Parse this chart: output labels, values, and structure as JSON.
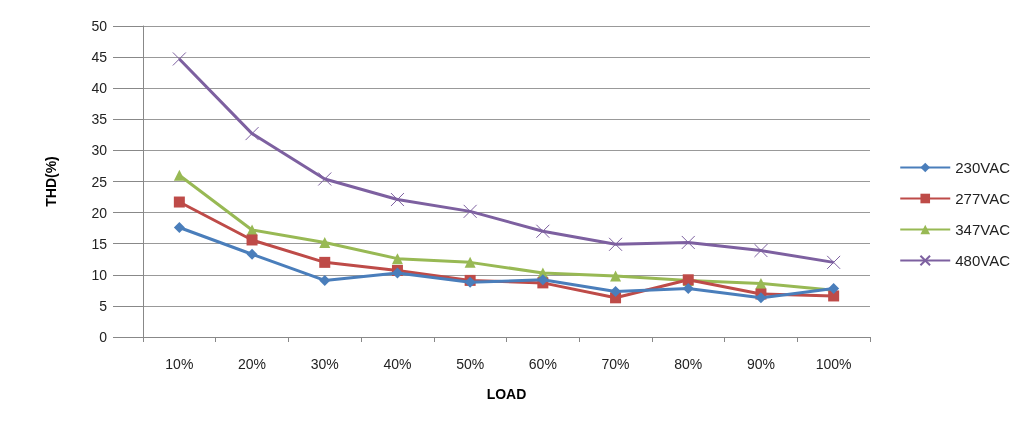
{
  "chart_data": {
    "type": "line",
    "xlabel": "LOAD",
    "ylabel": "THD(%)",
    "categories": [
      "10%",
      "20%",
      "30%",
      "40%",
      "50%",
      "60%",
      "70%",
      "80%",
      "90%",
      "100%"
    ],
    "ylim": [
      0,
      50
    ],
    "yticks": [
      0,
      5,
      10,
      15,
      20,
      25,
      30,
      35,
      40,
      45,
      50
    ],
    "grid": "y",
    "legend": "right",
    "series": [
      {
        "name": "230VAC",
        "color": "#4a7ebb",
        "marker": "diamond",
        "values": [
          17.6,
          13.3,
          9.1,
          10.3,
          8.8,
          9.2,
          7.3,
          7.8,
          6.3,
          7.8
        ]
      },
      {
        "name": "277VAC",
        "color": "#be4b48",
        "marker": "square",
        "values": [
          21.7,
          15.6,
          12.0,
          10.7,
          9.1,
          8.7,
          6.3,
          9.2,
          6.9,
          6.6
        ]
      },
      {
        "name": "347VAC",
        "color": "#98b954",
        "marker": "triangle",
        "values": [
          26.0,
          17.2,
          15.2,
          12.6,
          12.0,
          10.3,
          9.8,
          9.1,
          8.6,
          7.5
        ]
      },
      {
        "name": "480VAC",
        "color": "#7d60a0",
        "marker": "cross",
        "values": [
          44.7,
          32.7,
          25.4,
          22.1,
          20.2,
          17.0,
          14.9,
          15.2,
          13.9,
          12.0
        ]
      }
    ]
  }
}
